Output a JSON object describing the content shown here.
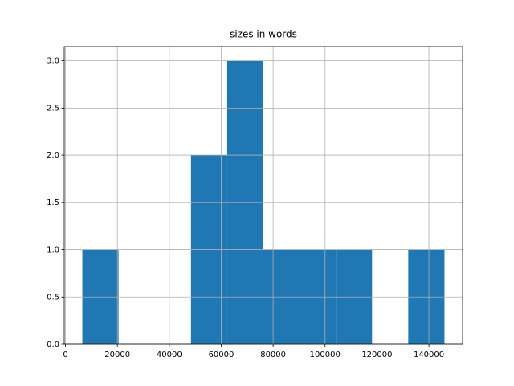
{
  "chart_data": {
    "type": "histogram",
    "title": "sizes in words",
    "bins": [
      6500,
      20450,
      34400,
      48350,
      62300,
      76250,
      90200,
      104150,
      118100,
      132050,
      146000
    ],
    "values": [
      1,
      0,
      0,
      2,
      3,
      1,
      1,
      1,
      0,
      1
    ],
    "color": "#1f77b4",
    "xlim": [
      -475,
      152975
    ],
    "xticks": [
      0,
      20000,
      40000,
      60000,
      80000,
      100000,
      120000,
      140000
    ],
    "ylim": [
      0,
      3.15
    ],
    "yticks": [
      {
        "value": 0,
        "label": "0.0"
      },
      0.5,
      {
        "value": 1,
        "label": "1.0"
      },
      1.5,
      {
        "value": 2,
        "label": "2.0"
      },
      2.5,
      {
        "value": 3,
        "label": "3.0"
      }
    ],
    "grid": true
  }
}
